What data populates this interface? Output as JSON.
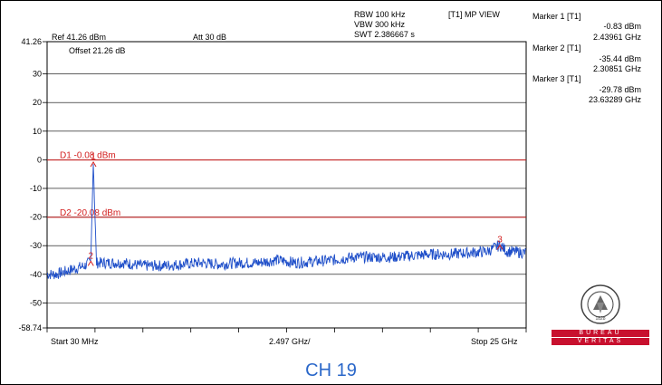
{
  "header": {
    "rbw": "RBW 100 kHz",
    "vbw": "VBW 300 kHz",
    "swt": "SWT 2.386667 s",
    "trace_mode": "[T1] MP VIEW",
    "ref": "Ref 41.26 dBm",
    "att": "Att  30 dB",
    "offset": "Offset 21.26 dB"
  },
  "markers": [
    {
      "label": "Marker 1 [T1]",
      "level": "-0.83 dBm",
      "freq": "2.43961 GHz"
    },
    {
      "label": "Marker 2 [T1]",
      "level": "-35.44 dBm",
      "freq": "2.30851 GHz"
    },
    {
      "label": "Marker 3 [T1]",
      "level": "-29.78 dBm",
      "freq": "23.63289 GHz"
    }
  ],
  "footer": {
    "start": "Start 30 MHz",
    "span_div": "2.497 GHz/",
    "stop": "Stop 25 GHz"
  },
  "channel_title": "CH 19",
  "logo": {
    "top_text": "BUREAU",
    "bottom_text": "VERITAS",
    "year": "1828"
  },
  "colors": {
    "trace": "#1f4fc9",
    "display_line": "#d32020",
    "marker": "#d32020",
    "channel_title": "#2a67c9"
  },
  "chart_data": {
    "type": "line",
    "x_unit": "GHz",
    "y_unit": "dBm",
    "xlim": [
      0.03,
      25
    ],
    "ylim": [
      -58.74,
      41.26
    ],
    "y_ticks": [
      "41.26",
      "30",
      "20",
      "10",
      "0",
      "-10",
      "-20",
      "-30",
      "-40",
      "-50",
      "-58.74"
    ],
    "grid": true,
    "display_lines": [
      {
        "name": "D1 -0.08 dBm",
        "value": -0.08
      },
      {
        "name": "D2 -20.08 dBm",
        "value": -20.08
      }
    ],
    "marker_points": [
      {
        "id": "1",
        "x": 2.43961,
        "y": -0.83
      },
      {
        "id": "2",
        "x": 2.30851,
        "y": -35.44
      },
      {
        "id": "3",
        "x": 23.63289,
        "y": -29.78
      }
    ],
    "series": [
      {
        "x": [
          0.03,
          0.5,
          1.0,
          1.5,
          2.0,
          2.3,
          2.44,
          2.6,
          3.0,
          4.0,
          5.0,
          6.0,
          7.0,
          8.0,
          9.0,
          10.0,
          11.0,
          12.0,
          13.0,
          14.0,
          15.0,
          16.0,
          17.0,
          18.0,
          19.0,
          20.0,
          21.0,
          22.0,
          23.0,
          23.63,
          24.0,
          25.0
        ],
        "y": [
          -40,
          -40,
          -39,
          -38,
          -37,
          -35.5,
          -0.83,
          -36,
          -36,
          -36,
          -37,
          -37,
          -36.5,
          -36,
          -36.5,
          -36,
          -36,
          -35,
          -36,
          -35.5,
          -35,
          -34,
          -34,
          -34,
          -33.5,
          -33,
          -33,
          -32.5,
          -32,
          -29.8,
          -32,
          -32.5
        ]
      }
    ]
  }
}
